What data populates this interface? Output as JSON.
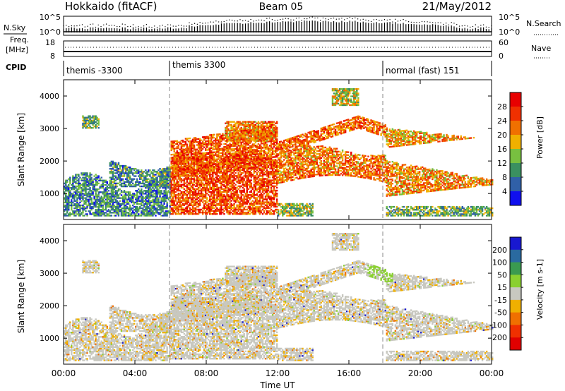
{
  "header": {
    "station": "Hokkaido (fitACF)",
    "beam": "Beam 05",
    "date": "21/May/2012"
  },
  "top_panels": {
    "nsky": {
      "label": "N.Sky",
      "left_ticks": [
        "10^5",
        "10^0"
      ],
      "right_ticks": [
        "10^5",
        "10^0"
      ],
      "right_label": "N.Search"
    },
    "freq": {
      "label_line1": "Freq.",
      "label_line2": "[MHz]",
      "left_ticks": [
        "18",
        "8"
      ],
      "right_ticks": [
        "60",
        "0"
      ],
      "right_label": "Nave"
    },
    "cpid": {
      "label": "CPID",
      "segments": [
        {
          "text": "themis -3300",
          "start_hour": 0
        },
        {
          "text": "themis 3300",
          "start_hour": 6
        },
        {
          "text": "normal (fast) 151",
          "start_hour": 18
        }
      ]
    }
  },
  "chart_data": [
    {
      "type": "heatmap",
      "title": "",
      "quantity": "Power",
      "colorbar_label": "Power [dB]",
      "colorbar_ticks": [
        4,
        8,
        12,
        16,
        20,
        24,
        28
      ],
      "colorbar_range": [
        0,
        30
      ],
      "colors": [
        "#1010ee",
        "#3060a8",
        "#3a9060",
        "#78c040",
        "#f0b000",
        "#f07000",
        "#f03000",
        "#e80000"
      ],
      "ylabel": "Slant Range [km]",
      "yticks": [
        1000,
        2000,
        3000,
        4000
      ],
      "ylim": [
        200,
        4500
      ],
      "xlim": [
        0,
        24
      ],
      "x_unit": "hours UT",
      "cpid_change_hours": [
        6,
        18
      ],
      "scatter_regions": [
        {
          "hours": [
            0,
            6
          ],
          "ranges_km": [
            [
              300,
              1900
            ],
            [
              400,
              1400
            ]
          ],
          "dominant_power_db": [
            4,
            20
          ]
        },
        {
          "hours": [
            6,
            12
          ],
          "ranges_km": [
            [
              300,
              2300
            ],
            [
              800,
              3000
            ]
          ],
          "dominant_power_db": [
            20,
            30
          ]
        },
        {
          "hours": [
            12,
            18
          ],
          "ranges_km": [
            [
              1400,
              2600
            ],
            [
              2600,
              3400
            ]
          ],
          "dominant_power_db": [
            16,
            30
          ]
        },
        {
          "hours": [
            18,
            24
          ],
          "ranges_km": [
            [
              900,
              2000
            ],
            [
              2400,
              3000
            ]
          ],
          "dominant_power_db": [
            16,
            30
          ]
        }
      ]
    },
    {
      "type": "heatmap",
      "title": "",
      "quantity": "Velocity",
      "colorbar_label": "Velocity [m s-1]",
      "colorbar_ticks": [
        200,
        100,
        50,
        15,
        -15,
        -50,
        -100,
        -200
      ],
      "colorbar_range": [
        -250,
        250
      ],
      "colors": [
        "#1818d0",
        "#2a6aa0",
        "#3a9a50",
        "#8ad030",
        "#c8c8c0",
        "#f0b000",
        "#f07000",
        "#f03000",
        "#e00000"
      ],
      "ylabel": "Slant Range [km]",
      "yticks": [
        1000,
        2000,
        3000,
        4000
      ],
      "ylim": [
        200,
        4500
      ],
      "xlim": [
        0,
        24
      ],
      "xlabel": "Time UT",
      "xtick_labels": [
        "00:00",
        "04:00",
        "08:00",
        "12:00",
        "16:00",
        "20:00",
        "00:00"
      ],
      "xtick_hours": [
        0,
        4,
        8,
        12,
        16,
        20,
        24
      ],
      "cpid_change_hours": [
        6,
        18
      ]
    }
  ]
}
